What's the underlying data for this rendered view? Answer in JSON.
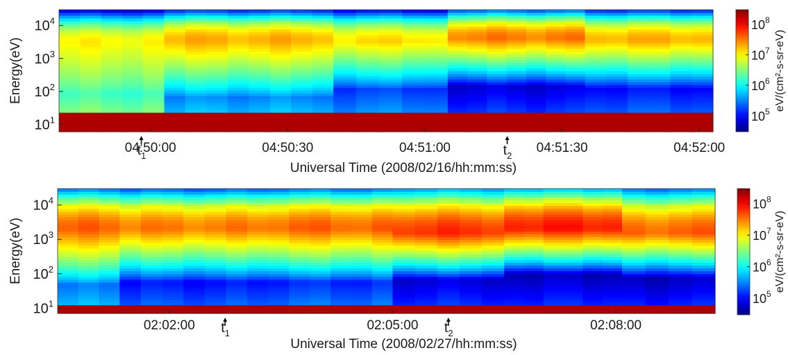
{
  "chart_data": [
    {
      "type": "heatmap",
      "title": "",
      "xlabel": "Universal Time (2008/02/16/hh:mm:ss)",
      "ylabel": "Energy(eV)",
      "y_scale": "log",
      "ylim": [
        6,
        30000
      ],
      "y_ticks": [
        {
          "value": 10,
          "base": "10",
          "exp": "1"
        },
        {
          "value": 100,
          "base": "10",
          "exp": "2"
        },
        {
          "value": 1000,
          "base": "10",
          "exp": "3"
        },
        {
          "value": 10000,
          "base": "10",
          "exp": "4"
        }
      ],
      "x_range": [
        "04:49:40",
        "04:52:03"
      ],
      "x_ticks": [
        "04:50:00",
        "04:50:30",
        "04:51:00",
        "04:51:30",
        "04:52:00"
      ],
      "markers": [
        {
          "name": "t",
          "sub": "1",
          "time": "04:49:58"
        },
        {
          "name": "t",
          "sub": "2",
          "time": "04:51:18"
        }
      ],
      "colorbar": {
        "label": "eV/(cm²-s-sr-eV)",
        "scale": "log",
        "range": [
          30000,
          300000000
        ],
        "ticks": [
          {
            "value": 100000,
            "base": "10",
            "exp": "5"
          },
          {
            "value": 1000000,
            "base": "10",
            "exp": "6"
          },
          {
            "value": 10000000,
            "base": "10",
            "exp": "7"
          },
          {
            "value": 100000000,
            "base": "10",
            "exp": "8"
          }
        ]
      },
      "time_columns": [
        {
          "start": "04:49:40",
          "end": "04:50:03",
          "peak_log": 7.0,
          "peak_energy": 3000,
          "low_edge": 90,
          "low_floor": 6.2
        },
        {
          "start": "04:50:03",
          "end": "04:50:40",
          "peak_log": 7.3,
          "peak_energy": 3500,
          "low_edge": 70,
          "low_floor": 5.5
        },
        {
          "start": "04:50:40",
          "end": "04:51:05",
          "peak_log": 7.1,
          "peak_energy": 3200,
          "low_edge": 120,
          "low_floor": 5.2
        },
        {
          "start": "04:51:05",
          "end": "04:51:35",
          "peak_log": 7.5,
          "peak_energy": 4000,
          "low_edge": 150,
          "low_floor": 4.8
        },
        {
          "start": "04:51:35",
          "end": "04:52:03",
          "peak_log": 7.3,
          "peak_energy": 3500,
          "low_edge": 130,
          "low_floor": 5.0
        }
      ],
      "low_energy_band": {
        "energy_max": 22,
        "level_log": 8.3
      }
    },
    {
      "type": "heatmap",
      "title": "",
      "xlabel": "Universal Time (2008/02/27/hh:mm:ss)",
      "ylabel": "Energy(eV)",
      "y_scale": "log",
      "ylim": [
        7,
        30000
      ],
      "y_ticks": [
        {
          "value": 10,
          "base": "10",
          "exp": "1"
        },
        {
          "value": 100,
          "base": "10",
          "exp": "2"
        },
        {
          "value": 1000,
          "base": "10",
          "exp": "3"
        },
        {
          "value": 10000,
          "base": "10",
          "exp": "4"
        }
      ],
      "x_range": [
        "02:00:30",
        "02:09:20"
      ],
      "x_ticks": [
        "02:02:00",
        "02:05:00",
        "02:08:00"
      ],
      "markers": [
        {
          "name": "t",
          "sub": "1",
          "time": "02:02:45"
        },
        {
          "name": "t",
          "sub": "2",
          "time": "02:05:45"
        }
      ],
      "colorbar": {
        "label": "eV/(cm²-s-sr-eV)",
        "scale": "log",
        "range": [
          30000,
          300000000
        ],
        "ticks": [
          {
            "value": 100000,
            "base": "10",
            "exp": "5"
          },
          {
            "value": 1000000,
            "base": "10",
            "exp": "6"
          },
          {
            "value": 10000000,
            "base": "10",
            "exp": "7"
          },
          {
            "value": 100000000,
            "base": "10",
            "exp": "8"
          }
        ]
      },
      "time_columns": [
        {
          "start": "02:00:30",
          "end": "02:01:20",
          "peak_log": 7.6,
          "peak_energy": 2000,
          "low_edge": 50,
          "low_floor": 5.4
        },
        {
          "start": "02:01:20",
          "end": "02:03:20",
          "peak_log": 7.5,
          "peak_energy": 2000,
          "low_edge": 60,
          "low_floor": 5.0
        },
        {
          "start": "02:03:20",
          "end": "02:05:00",
          "peak_log": 7.6,
          "peak_energy": 2000,
          "low_edge": 60,
          "low_floor": 5.1
        },
        {
          "start": "02:05:00",
          "end": "02:06:30",
          "peak_log": 7.8,
          "peak_energy": 1500,
          "low_edge": 70,
          "low_floor": 4.8
        },
        {
          "start": "02:06:30",
          "end": "02:08:05",
          "peak_log": 7.9,
          "peak_energy": 2000,
          "low_edge": 100,
          "low_floor": 4.7
        },
        {
          "start": "02:08:05",
          "end": "02:09:20",
          "peak_log": 7.6,
          "peak_energy": 1500,
          "low_edge": 80,
          "low_floor": 4.7
        }
      ],
      "low_energy_band": {
        "energy_max": 13,
        "level_log": 8.3
      }
    }
  ]
}
